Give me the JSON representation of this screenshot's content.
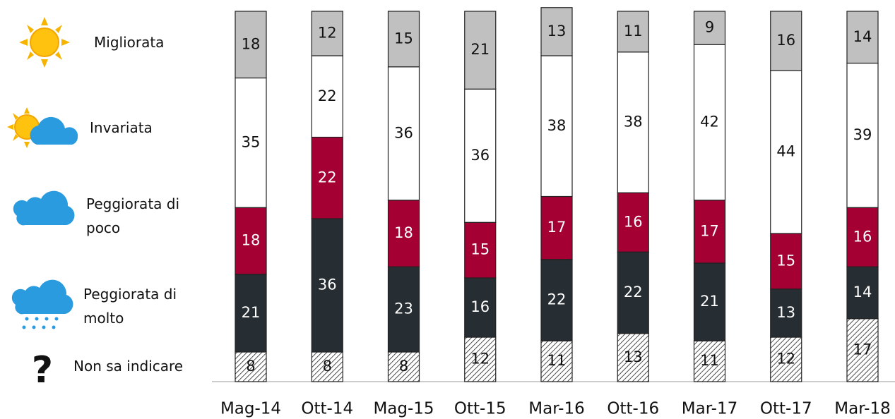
{
  "chart_data": {
    "type": "stacked-bar",
    "categories": [
      "Mag-14",
      "Ott-14",
      "Mag-15",
      "Ott-15",
      "Mar-16",
      "Ott-16",
      "Mar-17",
      "Ott-17",
      "Mar-18"
    ],
    "series": [
      {
        "name": "Non sa indicare",
        "color": "#ffffff",
        "pattern": "hatch",
        "values": [
          8,
          8,
          8,
          12,
          11,
          13,
          11,
          12,
          17
        ]
      },
      {
        "name": "Peggiorata di molto",
        "color": "#262d33",
        "values": [
          21,
          36,
          23,
          16,
          22,
          22,
          21,
          13,
          14
        ]
      },
      {
        "name": "Peggiorata di poco",
        "color": "#a50034",
        "values": [
          18,
          22,
          18,
          15,
          17,
          16,
          17,
          15,
          16
        ]
      },
      {
        "name": "Invariata",
        "color": "#ffffff",
        "values": [
          35,
          22,
          36,
          36,
          38,
          38,
          42,
          44,
          39
        ]
      },
      {
        "name": "Migliorata",
        "color": "#c0c0c0",
        "values": [
          18,
          12,
          15,
          21,
          13,
          11,
          9,
          16,
          14
        ]
      }
    ],
    "ylim": [
      0,
      100
    ]
  }
}
